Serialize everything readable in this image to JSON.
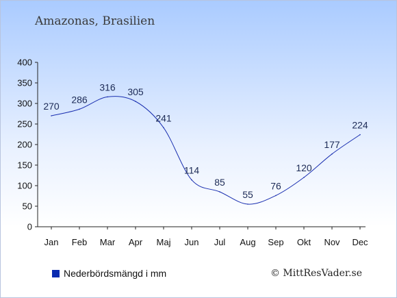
{
  "title": "Amazonas, Brasilien",
  "legend": {
    "label": "Nederbördsmängd i mm"
  },
  "copyright": "© MittResVader.se",
  "chart_data": {
    "type": "line",
    "title": "Amazonas, Brasilien",
    "xlabel": "",
    "ylabel": "",
    "categories": [
      "Jan",
      "Feb",
      "Mar",
      "Apr",
      "Maj",
      "Jun",
      "Jul",
      "Aug",
      "Sep",
      "Okt",
      "Nov",
      "Dec"
    ],
    "series": [
      {
        "name": "Nederbördsmängd i mm",
        "values": [
          270,
          286,
          316,
          305,
          241,
          114,
          85,
          55,
          76,
          120,
          177,
          224
        ],
        "color": "#1a2fb0"
      }
    ],
    "ylim": [
      0,
      400
    ],
    "yticks": [
      0,
      50,
      100,
      150,
      200,
      250,
      300,
      350,
      400
    ],
    "grid": false,
    "legend_position": "bottom-left"
  }
}
